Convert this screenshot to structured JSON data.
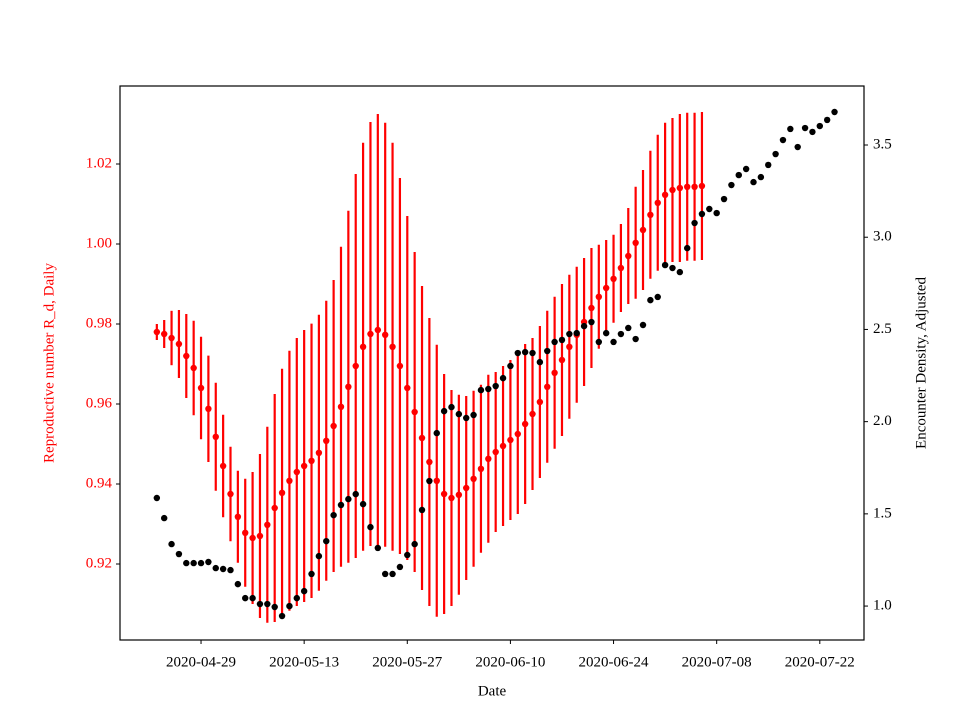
{
  "chart_data": {
    "type": "errorbar",
    "xlabel": "Date",
    "ylabel": "Reproductive number R_d, Daily",
    "y2label": "Encounter Density, Adjusted",
    "x": [
      "2020-04-23",
      "2020-04-24",
      "2020-04-25",
      "2020-04-26",
      "2020-04-27",
      "2020-04-28",
      "2020-04-29",
      "2020-04-30",
      "2020-05-01",
      "2020-05-02",
      "2020-05-03",
      "2020-05-04",
      "2020-05-05",
      "2020-05-06",
      "2020-05-07",
      "2020-05-08",
      "2020-05-09",
      "2020-05-10",
      "2020-05-11",
      "2020-05-12",
      "2020-05-13",
      "2020-05-14",
      "2020-05-15",
      "2020-05-16",
      "2020-05-17",
      "2020-05-18",
      "2020-05-19",
      "2020-05-20",
      "2020-05-21",
      "2020-05-22",
      "2020-05-23",
      "2020-05-24",
      "2020-05-25",
      "2020-05-26",
      "2020-05-27",
      "2020-05-28",
      "2020-05-29",
      "2020-05-30",
      "2020-05-31",
      "2020-06-01",
      "2020-06-02",
      "2020-06-03",
      "2020-06-04",
      "2020-06-05",
      "2020-06-06",
      "2020-06-07",
      "2020-06-08",
      "2020-06-09",
      "2020-06-10",
      "2020-06-11",
      "2020-06-12",
      "2020-06-13",
      "2020-06-14",
      "2020-06-15",
      "2020-06-16",
      "2020-06-17",
      "2020-06-18",
      "2020-06-19",
      "2020-06-20",
      "2020-06-21",
      "2020-06-22",
      "2020-06-23",
      "2020-06-24",
      "2020-06-25",
      "2020-06-26",
      "2020-06-27",
      "2020-06-28",
      "2020-06-29",
      "2020-06-30",
      "2020-07-01",
      "2020-07-02",
      "2020-07-03",
      "2020-07-04",
      "2020-07-05",
      "2020-07-06",
      "2020-07-07",
      "2020-07-08",
      "2020-07-09",
      "2020-07-10",
      "2020-07-11",
      "2020-07-12",
      "2020-07-13",
      "2020-07-14",
      "2020-07-15",
      "2020-07-16",
      "2020-07-17",
      "2020-07-18",
      "2020-07-19",
      "2020-07-20",
      "2020-07-21",
      "2020-07-22",
      "2020-07-23",
      "2020-07-24"
    ],
    "series": [
      {
        "color": "red",
        "axis": "y",
        "values": [
          0.978,
          0.9775,
          0.9765,
          0.975,
          0.972,
          0.969,
          0.964,
          0.9588,
          0.9518,
          0.9445,
          0.9375,
          0.9318,
          0.9278,
          0.9265,
          0.927,
          0.9298,
          0.934,
          0.9378,
          0.9408,
          0.943,
          0.9445,
          0.9458,
          0.9478,
          0.9508,
          0.9545,
          0.9593,
          0.9643,
          0.9695,
          0.9743,
          0.9775,
          0.9785,
          0.9773,
          0.9743,
          0.9695,
          0.964,
          0.958,
          0.9515,
          0.9455,
          0.9408,
          0.9375,
          0.9365,
          0.9373,
          0.939,
          0.9413,
          0.9438,
          0.9463,
          0.948,
          0.9495,
          0.951,
          0.9525,
          0.955,
          0.9575,
          0.9605,
          0.9643,
          0.9678,
          0.971,
          0.9743,
          0.9773,
          0.9805,
          0.984,
          0.9868,
          0.989,
          0.9913,
          0.994,
          0.997,
          1.0003,
          1.0035,
          1.0073,
          1.0103,
          1.0123,
          1.0135,
          1.014,
          1.0143,
          1.0143,
          1.0145,
          null,
          null,
          null,
          null,
          null,
          null,
          null,
          null,
          null,
          null,
          null,
          null,
          null,
          null,
          null,
          null,
          null,
          null
        ],
        "errors": [
          0.002,
          0.0035,
          0.0068,
          0.0085,
          0.0105,
          0.0118,
          0.0128,
          0.0133,
          0.0135,
          0.0128,
          0.0118,
          0.0115,
          0.0135,
          0.0165,
          0.0205,
          0.0245,
          0.0285,
          0.031,
          0.0325,
          0.0335,
          0.034,
          0.0343,
          0.0345,
          0.035,
          0.0365,
          0.04,
          0.044,
          0.048,
          0.051,
          0.053,
          0.054,
          0.053,
          0.051,
          0.047,
          0.043,
          0.04,
          0.038,
          0.036,
          0.034,
          0.03,
          0.027,
          0.025,
          0.023,
          0.022,
          0.021,
          0.021,
          0.02,
          0.02,
          0.02,
          0.02,
          0.02,
          0.019,
          0.019,
          0.019,
          0.019,
          0.019,
          0.018,
          0.017,
          0.016,
          0.015,
          0.013,
          0.012,
          0.011,
          0.011,
          0.012,
          0.014,
          0.015,
          0.016,
          0.017,
          0.018,
          0.018,
          0.0185,
          0.0185,
          0.0185,
          0.0185,
          null,
          null,
          null,
          null,
          null,
          null,
          null,
          null,
          null,
          null,
          null,
          null,
          null,
          null,
          null,
          null,
          null,
          null
        ]
      },
      {
        "color": "black",
        "axis": "y2",
        "values": [
          1.586,
          1.477,
          1.336,
          1.282,
          1.233,
          1.233,
          1.233,
          1.239,
          1.206,
          1.201,
          1.195,
          1.119,
          1.043,
          1.043,
          1.011,
          1.011,
          0.995,
          0.946,
          1.0,
          1.043,
          1.081,
          1.174,
          1.271,
          1.352,
          1.493,
          1.548,
          1.58,
          1.607,
          1.553,
          1.428,
          1.315,
          1.174,
          1.174,
          1.212,
          1.277,
          1.336,
          1.521,
          1.678,
          1.938,
          2.057,
          2.079,
          2.041,
          2.02,
          2.036,
          2.171,
          2.177,
          2.193,
          2.236,
          2.302,
          2.372,
          2.377,
          2.372,
          2.323,
          2.383,
          2.432,
          2.443,
          2.475,
          2.48,
          2.518,
          2.54,
          2.432,
          2.48,
          2.432,
          2.475,
          2.508,
          2.448,
          2.524,
          2.659,
          2.676,
          2.849,
          2.833,
          2.811,
          2.941,
          3.077,
          3.126,
          3.153,
          3.131,
          3.207,
          3.283,
          3.337,
          3.37,
          3.299,
          3.326,
          3.392,
          3.451,
          3.527,
          3.587,
          3.489,
          3.592,
          3.571,
          3.603,
          3.636,
          3.679
        ]
      }
    ],
    "xlim": [
      "2020-04-18",
      "2020-07-28"
    ],
    "xticks": [
      "2020-04-29",
      "2020-05-13",
      "2020-05-27",
      "2020-06-10",
      "2020-06-24",
      "2020-07-08",
      "2020-07-22"
    ],
    "ylim": [
      0.901,
      1.0395
    ],
    "yticks": [
      0.92,
      0.94,
      0.96,
      0.98,
      {
        "value": 1,
        "label": "1.00"
      },
      1.02
    ],
    "y2lim": [
      0.816,
      3.82
    ],
    "y2ticks": [
      {
        "value": 1,
        "label": "1.0"
      },
      1.5,
      {
        "value": 2,
        "label": "2.0"
      },
      2.5,
      {
        "value": 3,
        "label": "3.0"
      },
      3.5
    ]
  }
}
